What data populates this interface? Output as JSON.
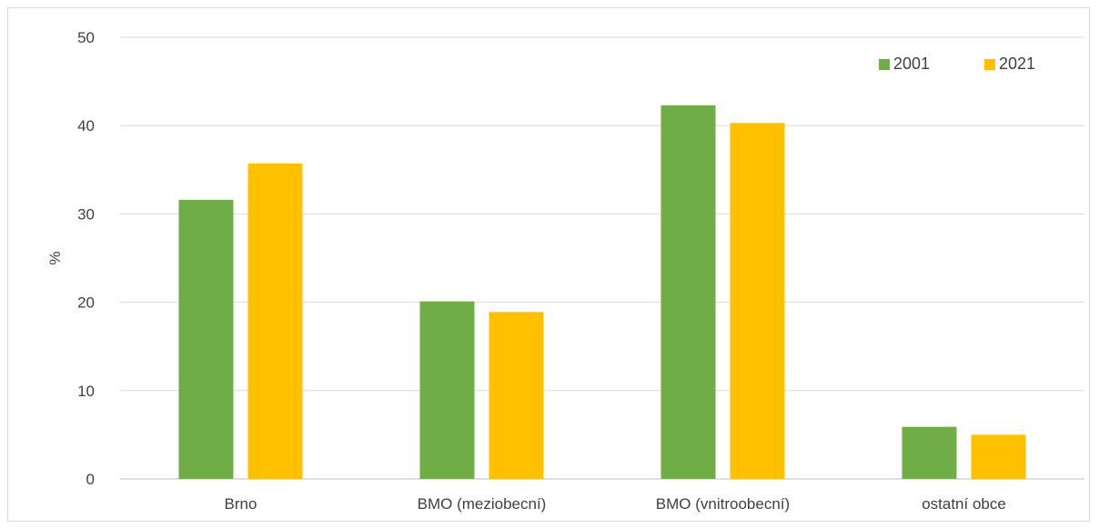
{
  "chart_data": {
    "type": "bar",
    "categories": [
      "Brno",
      "BMO (meziobecní)",
      "BMO (vnitroobecní)",
      "ostatní obce"
    ],
    "series": [
      {
        "name": "2001",
        "values": [
          31.6,
          20.1,
          42.3,
          5.9
        ],
        "color": "#70ad47"
      },
      {
        "name": "2021",
        "values": [
          35.7,
          18.9,
          40.3,
          5.0
        ],
        "color": "#ffc000"
      }
    ],
    "title": "",
    "xlabel": "",
    "ylabel": "%",
    "ylim": [
      0,
      50
    ],
    "yticks": [
      "0",
      "10",
      "20",
      "30",
      "40",
      "50"
    ],
    "grid": true,
    "legend_position": "top-right"
  }
}
